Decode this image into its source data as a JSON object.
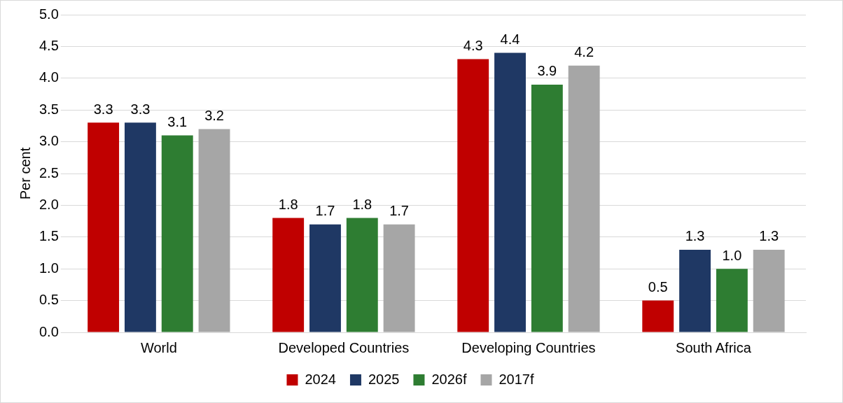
{
  "chart_data": {
    "type": "bar",
    "ylabel": "Per cent",
    "categories": [
      "World",
      "Developed Countries",
      "Developing Countries",
      "South Africa"
    ],
    "series": [
      {
        "name": "2024",
        "color": "#c00000",
        "values": [
          3.3,
          1.8,
          4.3,
          0.5
        ],
        "value_labels": [
          "3.3",
          "1.8",
          "4.3",
          "0.5"
        ]
      },
      {
        "name": "2025",
        "color": "#1f3864",
        "values": [
          3.3,
          1.7,
          4.4,
          1.3
        ],
        "value_labels": [
          "3.3",
          "1.7",
          "4.4",
          "1.3"
        ]
      },
      {
        "name": "2026f",
        "color": "#2e7d32",
        "values": [
          3.1,
          1.8,
          3.9,
          1.0
        ],
        "value_labels": [
          "3.1",
          "1.8",
          "3.9",
          "1.0"
        ]
      },
      {
        "name": "2017f",
        "color": "#a6a6a6",
        "values": [
          3.2,
          1.7,
          4.2,
          1.3
        ],
        "value_labels": [
          "3.2",
          "1.7",
          "4.2",
          "1.3"
        ]
      }
    ],
    "ylim": [
      0,
      5
    ],
    "yticks": [
      {
        "value": 0,
        "label": "0.0"
      },
      {
        "value": 0.5,
        "label": "0.5"
      },
      {
        "value": 1,
        "label": "1.0"
      },
      {
        "value": 1.5,
        "label": "1.5"
      },
      {
        "value": 2,
        "label": "2.0"
      },
      {
        "value": 2.5,
        "label": "2.5"
      },
      {
        "value": 3,
        "label": "3.0"
      },
      {
        "value": 3.5,
        "label": "3.5"
      },
      {
        "value": 4,
        "label": "4.0"
      },
      {
        "value": 4.5,
        "label": "4.5"
      },
      {
        "value": 5,
        "label": "5.0"
      }
    ],
    "grid": "y",
    "legend": "bottom"
  }
}
